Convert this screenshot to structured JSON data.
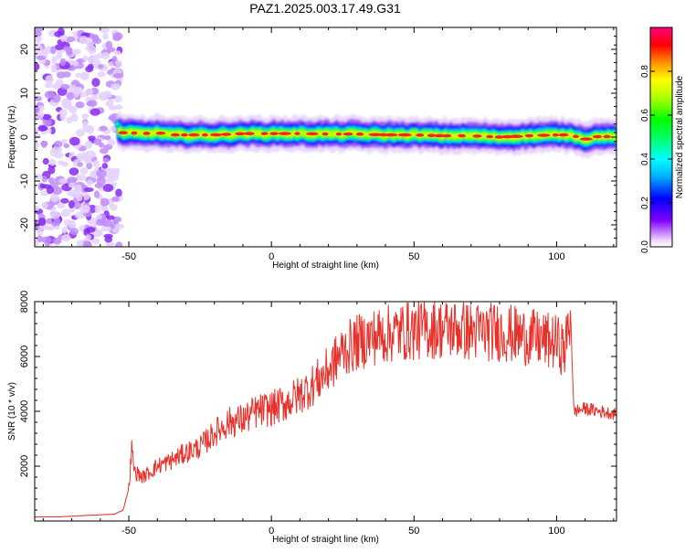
{
  "title": "PAZ1.2025.003.17.49.G31",
  "chart_data": [
    {
      "type": "heatmap",
      "xlabel": "Height of straight line (km)",
      "ylabel": "Frequency (Hz)",
      "xlim": [
        -83,
        121
      ],
      "ylim": [
        -25,
        25
      ],
      "x_ticks": [
        -50,
        0,
        50,
        100
      ],
      "x_tick_labels": [
        "-50",
        "0",
        "50",
        "100"
      ],
      "y_ticks": [
        -20,
        -10,
        0,
        10,
        20
      ],
      "y_tick_labels": [
        "-20",
        "-10",
        "0",
        "10",
        "20"
      ],
      "colorbar": {
        "label": "Normalized spectral amplitude",
        "range": [
          0,
          1
        ],
        "ticks": [
          0.0,
          0.2,
          0.4,
          0.6,
          0.8
        ],
        "tick_labels": [
          "0.0",
          "0.2",
          "0.4",
          "0.6",
          "0.8"
        ]
      },
      "ridge": {
        "x": [
          -54,
          -52,
          -50,
          -45,
          -40,
          -35,
          -30,
          -20,
          -10,
          0,
          10,
          20,
          30,
          40,
          50,
          60,
          70,
          80,
          90,
          100,
          105,
          110,
          115,
          121
        ],
        "frequency_hz": [
          1.5,
          1.0,
          1.0,
          0.8,
          1.0,
          0.5,
          0.5,
          0.5,
          0.8,
          0.8,
          0.8,
          0.7,
          0.7,
          0.5,
          0.5,
          0.3,
          0.3,
          0.0,
          0.3,
          0.5,
          0.5,
          -0.5,
          0.2,
          0.0
        ]
      },
      "noise_region_x": [
        -83,
        -53
      ],
      "grid": false
    },
    {
      "type": "line",
      "xlabel": "Height of straight line (km)",
      "ylabel": "SNR (10 * v/v)",
      "xlim": [
        -83,
        121
      ],
      "ylim": [
        0,
        8000
      ],
      "x_ticks": [
        -50,
        0,
        50,
        100
      ],
      "x_tick_labels": [
        "-50",
        "0",
        "50",
        "100"
      ],
      "y_ticks": [
        2000,
        4000,
        6000,
        8000
      ],
      "y_tick_labels": [
        "2000",
        "4000",
        "6000",
        "8000"
      ],
      "color": "#e8312a",
      "series": [
        {
          "x": [
            -83,
            -75,
            -65,
            -55,
            -52,
            -50,
            -49,
            -48,
            -45,
            -40,
            -35,
            -30,
            -25,
            -20,
            -15,
            -10,
            -5,
            0,
            5,
            10,
            15,
            20,
            25,
            30,
            35,
            40,
            45,
            50,
            55,
            60,
            65,
            70,
            75,
            80,
            85,
            90,
            95,
            100,
            103,
            104,
            105,
            106,
            110,
            115,
            121
          ],
          "y": [
            150,
            150,
            200,
            250,
            400,
            1200,
            2600,
            1800,
            1600,
            2000,
            2200,
            2500,
            2700,
            3200,
            3600,
            3700,
            4000,
            4100,
            4300,
            4600,
            5000,
            5500,
            6200,
            6500,
            6700,
            6800,
            6900,
            6950,
            7000,
            7000,
            7000,
            6900,
            6900,
            6900,
            6800,
            6700,
            6600,
            6500,
            6200,
            7000,
            7500,
            4000,
            4100,
            4000,
            3900
          ]
        }
      ],
      "grid": false
    }
  ]
}
